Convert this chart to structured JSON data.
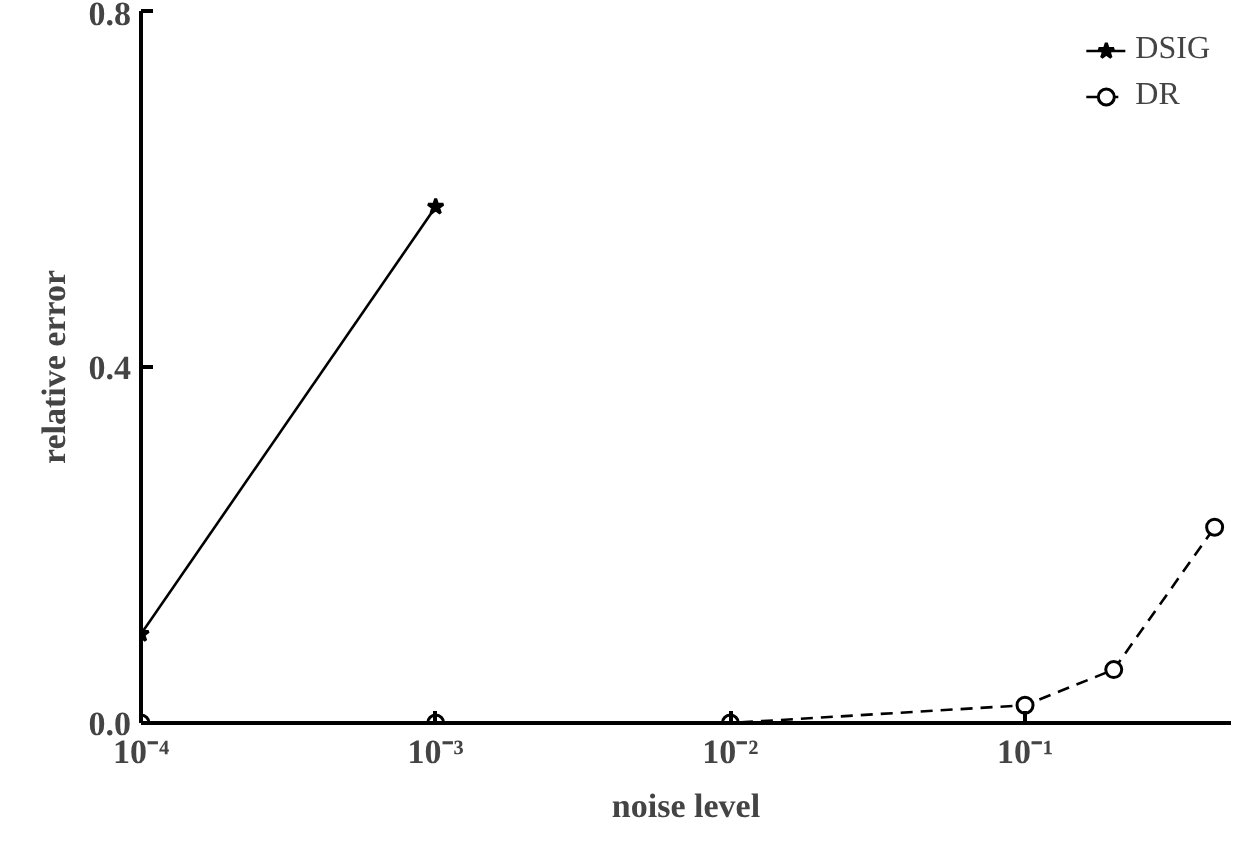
{
  "chart_data": {
    "type": "line",
    "xlabel": "noise level",
    "ylabel": "relative error",
    "log": "x",
    "xlim": [
      0.0001,
      0.5
    ],
    "xticks": [
      {
        "value": 0.0001,
        "label": "10⁻⁴"
      },
      {
        "value": 0.001,
        "label": "10⁻³"
      },
      {
        "value": 0.01,
        "label": "10⁻²"
      },
      {
        "value": 0.1,
        "label": "10⁻¹"
      }
    ],
    "ylim": [
      0,
      0.8
    ],
    "yticks": [
      {
        "value": 0,
        "label": "0.0"
      },
      {
        "value": 0.4,
        "label": "0.4"
      },
      {
        "value": 0.8,
        "label": "0.8"
      }
    ],
    "grid": false,
    "legend": "top right",
    "series": [
      {
        "name": "DSIG",
        "color": "#000000",
        "x": [
          0.0001,
          0.001
        ],
        "values": [
          0.1,
          0.58
        ],
        "marker": "star",
        "line_style": "solid"
      },
      {
        "name": "DR",
        "color": "#000000",
        "x": [
          0.0001,
          0.001,
          0.01,
          0.1,
          0.2,
          0.44
        ],
        "values": [
          0,
          0,
          0,
          0.02,
          0.06,
          0.22
        ],
        "marker": "circle",
        "line_style": "dashed"
      }
    ]
  }
}
